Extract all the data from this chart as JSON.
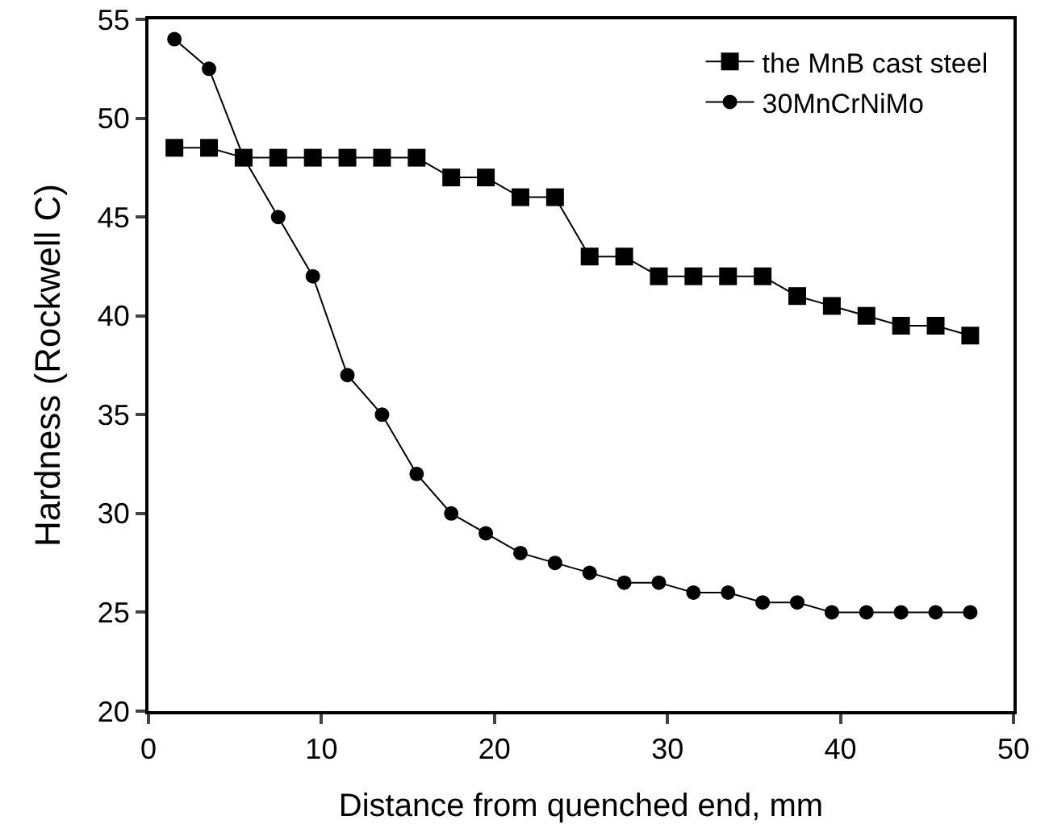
{
  "chart_data": {
    "type": "line",
    "xlabel": "Distance from quenched end, mm",
    "ylabel": "Hardness (Rockwell C)",
    "x": [
      1.5,
      3.5,
      5.5,
      7.5,
      9.5,
      11.5,
      13.5,
      15.5,
      17.5,
      19.5,
      21.5,
      23.5,
      25.5,
      27.5,
      29.5,
      31.5,
      33.5,
      35.5,
      37.5,
      39.5,
      41.5,
      43.5,
      45.5,
      47.5
    ],
    "series": [
      {
        "name": "the MnB cast steel",
        "color": "#000000",
        "marker": "square",
        "values": [
          48.5,
          48.5,
          48,
          48,
          48,
          48,
          48,
          48,
          47,
          47,
          46,
          46,
          43,
          43,
          42,
          42,
          42,
          42,
          41,
          40.5,
          40,
          39.5,
          39.5,
          39
        ]
      },
      {
        "name": "30MnCrNiMo",
        "color": "#000000",
        "marker": "circle",
        "values": [
          54,
          52.5,
          48,
          45,
          42,
          37,
          35,
          32,
          30,
          29,
          28,
          27.5,
          27,
          26.5,
          26.5,
          26,
          26,
          25.5,
          25.5,
          25,
          25,
          25,
          25,
          25
        ]
      }
    ],
    "xlim": [
      0,
      50
    ],
    "xticks": [
      0,
      10,
      20,
      30,
      40,
      50
    ],
    "ylim": [
      20,
      55
    ],
    "yticks": [
      20,
      25,
      30,
      35,
      40,
      45,
      50,
      55
    ],
    "grid": false,
    "legend": "top right",
    "line_style": "solid"
  }
}
